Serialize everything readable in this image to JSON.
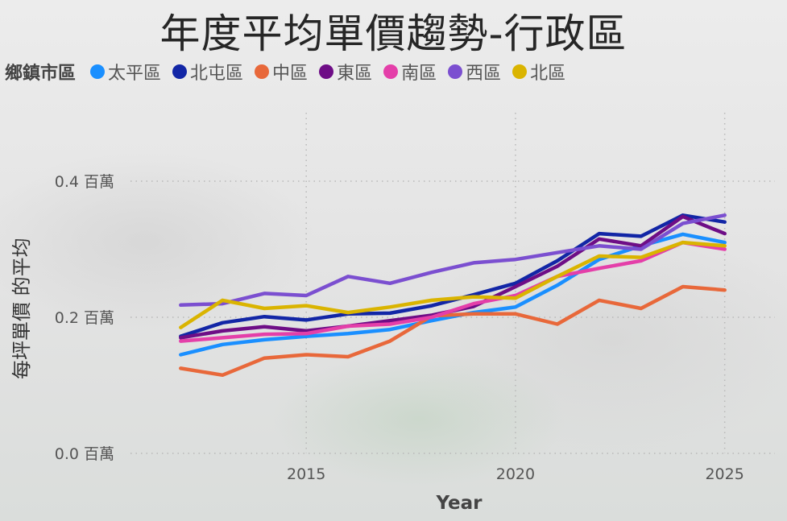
{
  "title": "年度平均單價趨勢-行政區",
  "legend_title": "鄉鎮市區",
  "colors": {
    "太平區": "#1a8fff",
    "北屯區": "#1226a6",
    "中區": "#e8683a",
    "東區": "#6e0d86",
    "南區": "#e43fa9",
    "西區": "#7b4fd0",
    "北區": "#dab400"
  },
  "chart_data": {
    "type": "line",
    "title": "年度平均單價趨勢-行政區",
    "xlabel": "Year",
    "ylabel": "每坪單價 的平均",
    "xlim": [
      2010.8,
      2026.2
    ],
    "ylim": [
      0,
      0.4
    ],
    "x_ticks": [
      2015,
      2020,
      2025
    ],
    "x_tick_labels": [
      "2015",
      "2020",
      "2025"
    ],
    "y_ticks": [
      0,
      0.2,
      0.4
    ],
    "y_tick_labels": [
      "0.0 百萬",
      "0.2 百萬",
      "0.4 百萬"
    ],
    "grid": true,
    "legend_position": "top-left",
    "x": [
      2012,
      2013,
      2014,
      2015,
      2016,
      2017,
      2018,
      2019,
      2020,
      2021,
      2022,
      2023,
      2024,
      2025
    ],
    "series": [
      {
        "name": "太平區",
        "values": [
          0.145,
          0.16,
          0.167,
          0.172,
          0.176,
          0.182,
          0.195,
          0.207,
          0.215,
          0.247,
          0.285,
          0.305,
          0.322,
          0.31
        ]
      },
      {
        "name": "北屯區",
        "values": [
          0.172,
          0.192,
          0.201,
          0.196,
          0.205,
          0.206,
          0.217,
          0.233,
          0.25,
          0.283,
          0.323,
          0.319,
          0.35,
          0.34
        ]
      },
      {
        "name": "中區",
        "values": [
          0.125,
          0.115,
          0.14,
          0.145,
          0.142,
          0.165,
          0.202,
          0.205,
          0.205,
          0.19,
          0.225,
          0.213,
          0.245,
          0.24
        ]
      },
      {
        "name": "東區",
        "values": [
          0.17,
          0.18,
          0.186,
          0.18,
          0.187,
          0.195,
          0.203,
          0.216,
          0.245,
          0.275,
          0.315,
          0.305,
          0.348,
          0.323
        ]
      },
      {
        "name": "南區",
        "values": [
          0.165,
          0.17,
          0.175,
          0.176,
          0.187,
          0.19,
          0.2,
          0.22,
          0.232,
          0.26,
          0.272,
          0.283,
          0.31,
          0.3
        ]
      },
      {
        "name": "西區",
        "values": [
          0.218,
          0.22,
          0.235,
          0.232,
          0.26,
          0.25,
          0.266,
          0.28,
          0.285,
          0.295,
          0.305,
          0.3,
          0.338,
          0.35
        ]
      },
      {
        "name": "北區",
        "values": [
          0.185,
          0.225,
          0.213,
          0.217,
          0.207,
          0.215,
          0.225,
          0.23,
          0.228,
          0.26,
          0.29,
          0.288,
          0.31,
          0.305
        ]
      }
    ]
  }
}
